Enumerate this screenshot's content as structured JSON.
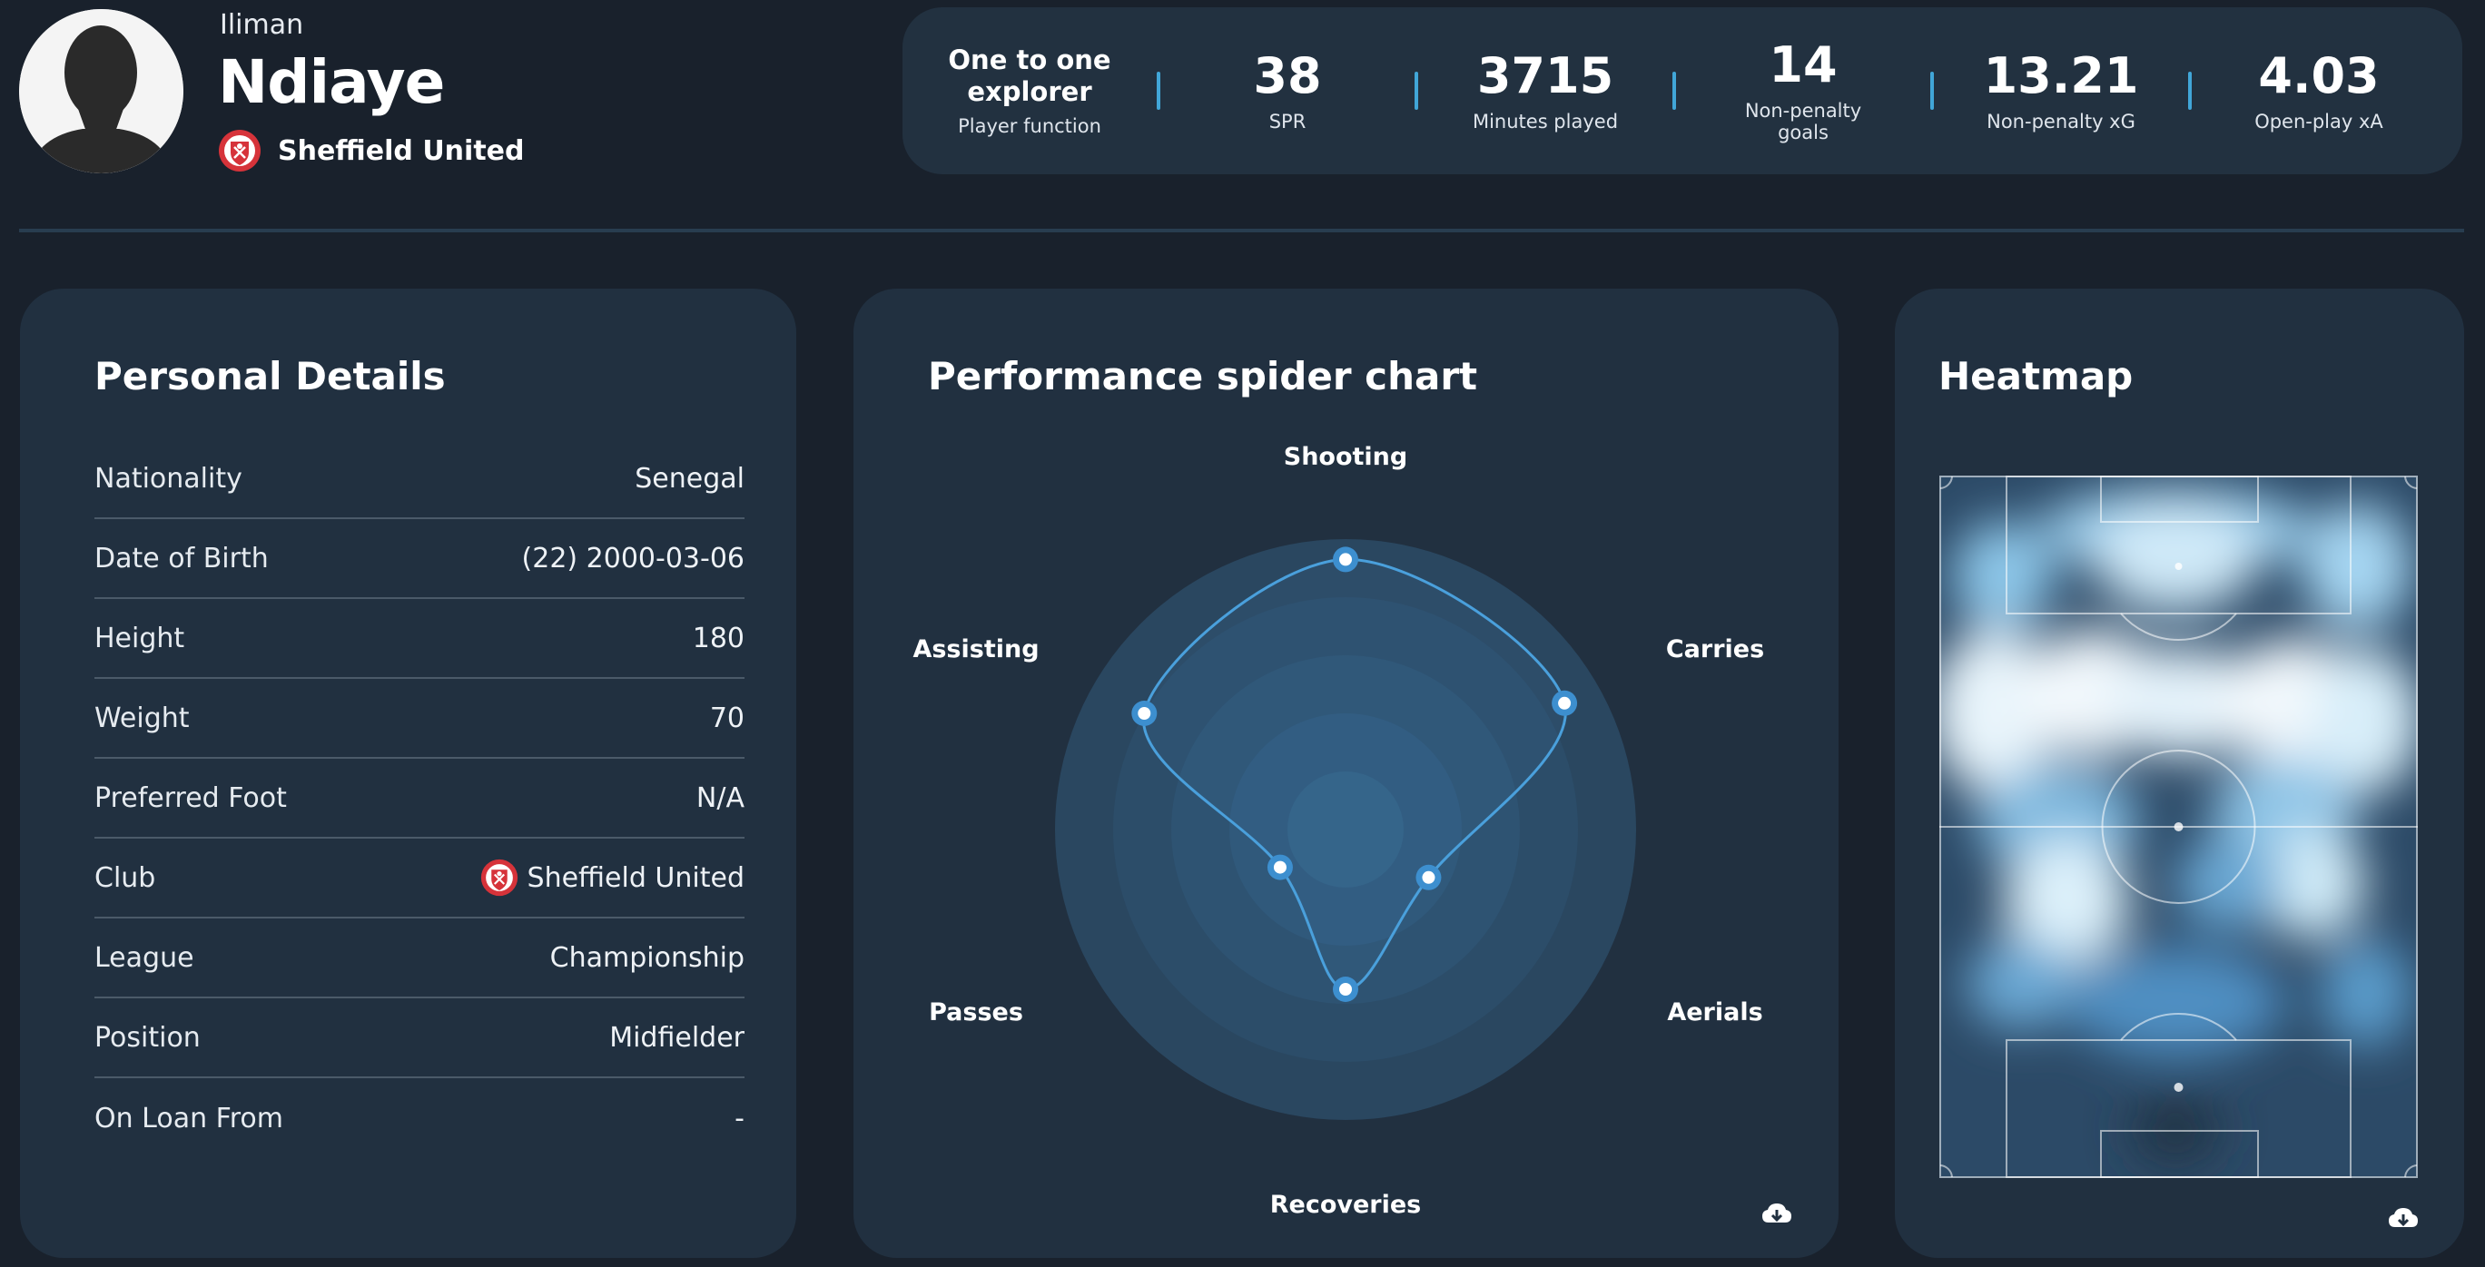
{
  "player": {
    "first_name": "Iliman",
    "last_name": "Ndiaye",
    "club": "Sheffield United"
  },
  "stats": [
    {
      "value": "One to one explorer",
      "label": "Player function"
    },
    {
      "value": "38",
      "label": "SPR"
    },
    {
      "value": "3715",
      "label": "Minutes played"
    },
    {
      "value": "14",
      "label": "Non-penalty goals"
    },
    {
      "value": "13.21",
      "label": "Non-penalty xG"
    },
    {
      "value": "4.03",
      "label": "Open-play xA"
    }
  ],
  "personal_details": {
    "title": "Personal Details",
    "rows": [
      {
        "label": "Nationality",
        "value": "Senegal"
      },
      {
        "label": "Date of Birth",
        "value": "(22) 2000-03-06"
      },
      {
        "label": "Height",
        "value": "180"
      },
      {
        "label": "Weight",
        "value": "70"
      },
      {
        "label": "Preferred Foot",
        "value": "N/A"
      },
      {
        "label": "Club",
        "value": "Sheffield United"
      },
      {
        "label": "League",
        "value": "Championship"
      },
      {
        "label": "Position",
        "value": "Midfielder"
      },
      {
        "label": "On Loan From",
        "value": "-"
      }
    ]
  },
  "spider": {
    "title": "Performance spider chart",
    "axes": [
      "Shooting",
      "Carries",
      "Aerials",
      "Recoveries",
      "Passes",
      "Assisting"
    ]
  },
  "chart_data": {
    "type": "radar",
    "title": "Performance spider chart",
    "categories": [
      "Shooting",
      "Carries",
      "Aerials",
      "Recoveries",
      "Passes",
      "Assisting"
    ],
    "values": [
      0.93,
      0.87,
      0.33,
      0.55,
      0.26,
      0.8
    ],
    "range": [
      0,
      1
    ],
    "rings": 5
  },
  "heatmap": {
    "title": "Heatmap"
  },
  "icons": {
    "download": "cloud-download-icon",
    "badge": "sheffield-united-crest-icon"
  },
  "colors": {
    "background": "#19212c",
    "card": "#213040",
    "accent": "#41a6d8",
    "radar_line": "#4aa0dc",
    "badge_red": "#d6333a"
  }
}
